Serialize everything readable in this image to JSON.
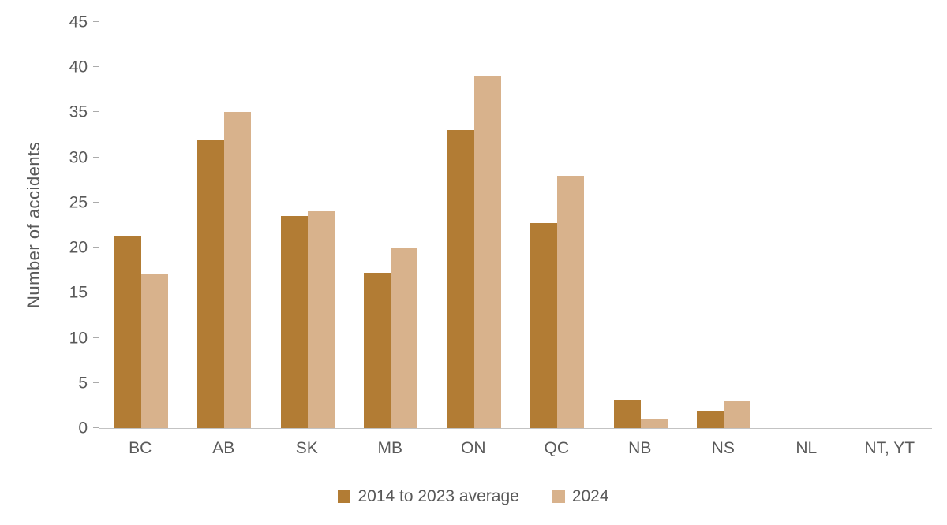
{
  "chart_data": {
    "type": "bar",
    "title": "",
    "xlabel": "",
    "ylabel": "Number of accidents",
    "categories": [
      "BC",
      "AB",
      "SK",
      "MB",
      "ON",
      "QC",
      "NB",
      "NS",
      "NL",
      "NT, YT"
    ],
    "series": [
      {
        "name": "2014 to 2023 average",
        "color": "#B27C34",
        "values": [
          21.2,
          32,
          23.5,
          17.2,
          33,
          22.7,
          3.1,
          1.8,
          0,
          0
        ]
      },
      {
        "name": "2024",
        "color": "#D8B28C",
        "values": [
          17,
          35,
          24,
          20,
          39,
          28,
          1,
          3,
          0,
          0
        ]
      }
    ],
    "ylim": [
      0,
      45
    ],
    "ytick_step": 5,
    "grid": false,
    "legend_position": "bottom"
  },
  "colors": {
    "text": "#595959",
    "y_axis_line": "#ababab",
    "x_axis_line": "#c3c3c3",
    "background": "#ffffff",
    "series_dark": "#B27C34",
    "series_light": "#D8B28C"
  }
}
